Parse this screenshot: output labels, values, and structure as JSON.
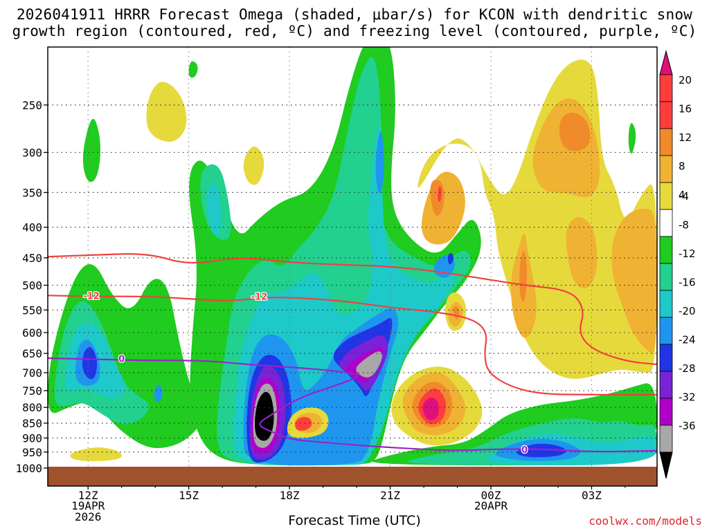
{
  "chart_data": {
    "type": "heatmap",
    "title_line1": "2026041911 HRRR Forecast Omega (shaded, μbar/s) for KCON with dendritic snow",
    "title_line2": "growth region (contoured, red, ºC) and freezing level (contoured, purple, ºC)",
    "xlabel": "Forecast Time (UTC)",
    "credit": "coolwx.com/models",
    "x_hours": [
      12,
      15,
      18,
      21,
      24,
      27
    ],
    "x_ticks": [
      {
        "hour": 12,
        "label": "12Z",
        "sub1": "19APR",
        "sub2": "2026"
      },
      {
        "hour": 15,
        "label": "15Z",
        "sub1": "",
        "sub2": ""
      },
      {
        "hour": 18,
        "label": "18Z",
        "sub1": "",
        "sub2": ""
      },
      {
        "hour": 21,
        "label": "21Z",
        "sub1": "",
        "sub2": ""
      },
      {
        "hour": 24,
        "label": "00Z",
        "sub1": "20APR",
        "sub2": ""
      },
      {
        "hour": 27,
        "label": "03Z",
        "sub1": "",
        "sub2": ""
      }
    ],
    "xlim_hours": [
      10.8,
      28.95
    ],
    "y_levels_hpa": [
      250,
      300,
      350,
      400,
      450,
      500,
      550,
      600,
      650,
      700,
      750,
      800,
      850,
      900,
      950,
      1000
    ],
    "ylim_hpa": [
      200,
      1005
    ],
    "colorbar": {
      "labels": [
        "20",
        "16",
        "12",
        "8",
        "4",
        "-4",
        "-8",
        "-12",
        "-16",
        "-20",
        "-24",
        "-28",
        "-32",
        "-36"
      ],
      "colors": [
        "#ff3d3d",
        "#ff3d3d",
        "#f08a2a",
        "#f0b232",
        "#e6d93c",
        "#ffffff",
        "#1fcc1f",
        "#22d08f",
        "#1ec9c9",
        "#1e96f0",
        "#2035e6",
        "#7a22d6",
        "#b000c8",
        "#a8a8a8"
      ],
      "top_color": "#e0107a",
      "bottom_color": "#000000"
    },
    "shading_legend_units": "μbar/s",
    "omega_features": [
      {
        "name": "ascent-core-17z",
        "hour": 17.0,
        "level_hpa": 805,
        "min_value": -36
      },
      {
        "name": "ascent-core-20z",
        "hour": 20.3,
        "level_hpa": 670,
        "min_value": -32
      },
      {
        "name": "ascent-upper-20z",
        "hour": 20.7,
        "level_hpa": 300,
        "min_value": -16
      },
      {
        "name": "ascent-12z",
        "hour": 12.0,
        "level_hpa": 660,
        "min_value": -24
      },
      {
        "name": "ascent-00z",
        "hour": 25.3,
        "level_hpa": 930,
        "min_value": -24
      },
      {
        "name": "descent-22z",
        "hour": 22.3,
        "level_hpa": 800,
        "max_value": 24
      },
      {
        "name": "descent-18z",
        "hour": 18.3,
        "level_hpa": 850,
        "max_value": 16
      },
      {
        "name": "descent-01z",
        "hour": 26.2,
        "level_hpa": 270,
        "max_value": 16
      },
      {
        "name": "descent-2330z",
        "hour": 23.0,
        "level_hpa": 360,
        "max_value": 12
      }
    ],
    "contours": [
      {
        "name": "dendritic-upper",
        "label": "",
        "color": "#f04040",
        "points": [
          [
            10.8,
            448
          ],
          [
            12.2,
            445
          ],
          [
            13.8,
            442
          ],
          [
            15.0,
            463
          ],
          [
            16.5,
            448
          ],
          [
            18.0,
            458
          ],
          [
            19.5,
            462
          ],
          [
            21.0,
            465
          ],
          [
            22.5,
            475
          ],
          [
            24.0,
            490
          ],
          [
            25.0,
            500
          ],
          [
            26.4,
            510
          ],
          [
            26.8,
            550
          ],
          [
            26.6,
            600
          ],
          [
            27.0,
            640
          ],
          [
            28.0,
            670
          ],
          [
            28.95,
            678
          ]
        ]
      },
      {
        "name": "dendritic-lower",
        "label": "-12",
        "label_hour": 12.1,
        "label_hpa": 520,
        "label2": "-12",
        "label2_hour": 17.1,
        "label2_hpa": 522,
        "color": "#f04040",
        "points": [
          [
            10.8,
            520
          ],
          [
            12.2,
            522
          ],
          [
            13.8,
            522
          ],
          [
            15.3,
            528
          ],
          [
            16.2,
            532
          ],
          [
            17.5,
            522
          ],
          [
            19.5,
            530
          ],
          [
            21.0,
            545
          ],
          [
            22.5,
            555
          ],
          [
            23.5,
            570
          ],
          [
            23.9,
            600
          ],
          [
            23.8,
            650
          ],
          [
            23.9,
            700
          ],
          [
            24.6,
            740
          ],
          [
            25.5,
            760
          ],
          [
            26.8,
            762
          ],
          [
            28.95,
            762
          ]
        ]
      },
      {
        "name": "freezing-level",
        "label": "0",
        "label_hour": 13.0,
        "label_hpa": 663,
        "label2": "0",
        "label2_hour": 25.0,
        "label2_hpa": 940,
        "color": "#9b22c8",
        "points": [
          [
            10.8,
            662
          ],
          [
            12.2,
            665
          ],
          [
            14.0,
            668
          ],
          [
            15.5,
            668
          ],
          [
            17.0,
            680
          ],
          [
            18.5,
            688
          ],
          [
            19.6,
            698
          ],
          [
            20.2,
            706
          ],
          [
            19.4,
            735
          ],
          [
            18.3,
            770
          ],
          [
            17.5,
            820
          ],
          [
            17.0,
            855
          ],
          [
            17.5,
            880
          ],
          [
            18.0,
            905
          ],
          [
            19.0,
            915
          ],
          [
            20.5,
            930
          ],
          [
            22.0,
            940
          ],
          [
            23.0,
            945
          ],
          [
            24.0,
            940
          ],
          [
            25.5,
            938
          ],
          [
            27.0,
            950
          ],
          [
            28.95,
            945
          ]
        ]
      }
    ]
  }
}
